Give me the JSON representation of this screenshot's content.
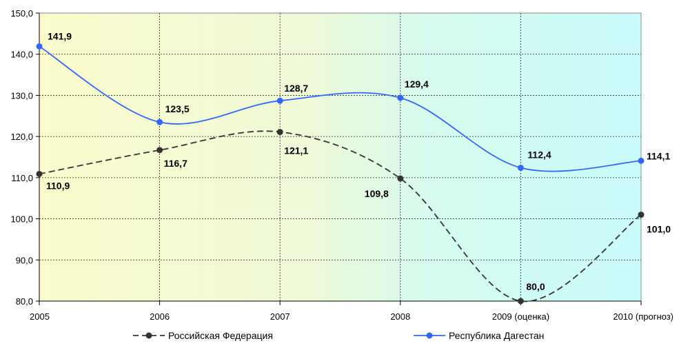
{
  "chart_data": {
    "type": "line",
    "categories": [
      "2005",
      "2006",
      "2007",
      "2008",
      "2009 (оценка)",
      "2010 (прогноз)"
    ],
    "series": [
      {
        "name": "Российская Федерация",
        "values": [
          110.9,
          116.7,
          121.1,
          109.8,
          80.0,
          101.0
        ],
        "labels": [
          "110,9",
          "116,7",
          "121,1",
          "109,8",
          "80,0",
          "101,0"
        ],
        "color": "#333333",
        "line_style": "dashed"
      },
      {
        "name": "Республика Дагестан",
        "values": [
          141.9,
          123.5,
          128.7,
          129.4,
          112.4,
          114.1
        ],
        "labels": [
          "141,9",
          "123,5",
          "128,7",
          "129,4",
          "112,4",
          "114,1"
        ],
        "color": "#3366ff",
        "line_style": "solid"
      }
    ],
    "ylim": [
      80,
      150
    ],
    "yticks": [
      80,
      90,
      100,
      110,
      120,
      130,
      140,
      150
    ],
    "ytick_labels": [
      "80,0",
      "90,0",
      "100,0",
      "110,0",
      "120,0",
      "130,0",
      "140,0",
      "150,0"
    ],
    "grid": true,
    "legend_position": "bottom",
    "background": "gradient yellow to cyan"
  }
}
